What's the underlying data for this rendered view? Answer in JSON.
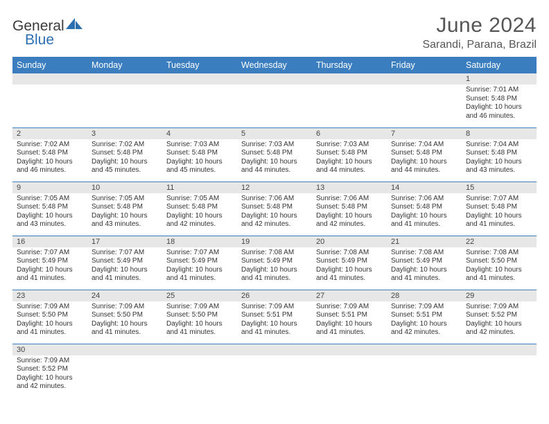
{
  "brand": {
    "name1": "General",
    "name2": "Blue",
    "color_general": "#3a3a3a",
    "color_blue": "#2b6fb0",
    "icon_fill": "#2b6fb0"
  },
  "title": "June 2024",
  "location": "Sarandi, Parana, Brazil",
  "colors": {
    "header_bg": "#3a7ebf",
    "header_text": "#ffffff",
    "daynum_bg": "#e7e7e7",
    "row_border": "#3a7ebf",
    "text": "#333333",
    "title_text": "#555555"
  },
  "weekdays": [
    "Sunday",
    "Monday",
    "Tuesday",
    "Wednesday",
    "Thursday",
    "Friday",
    "Saturday"
  ],
  "weeks": [
    [
      null,
      null,
      null,
      null,
      null,
      null,
      {
        "d": "1",
        "sr": "Sunrise: 7:01 AM",
        "ss": "Sunset: 5:48 PM",
        "dl1": "Daylight: 10 hours",
        "dl2": "and 46 minutes."
      }
    ],
    [
      {
        "d": "2",
        "sr": "Sunrise: 7:02 AM",
        "ss": "Sunset: 5:48 PM",
        "dl1": "Daylight: 10 hours",
        "dl2": "and 46 minutes."
      },
      {
        "d": "3",
        "sr": "Sunrise: 7:02 AM",
        "ss": "Sunset: 5:48 PM",
        "dl1": "Daylight: 10 hours",
        "dl2": "and 45 minutes."
      },
      {
        "d": "4",
        "sr": "Sunrise: 7:03 AM",
        "ss": "Sunset: 5:48 PM",
        "dl1": "Daylight: 10 hours",
        "dl2": "and 45 minutes."
      },
      {
        "d": "5",
        "sr": "Sunrise: 7:03 AM",
        "ss": "Sunset: 5:48 PM",
        "dl1": "Daylight: 10 hours",
        "dl2": "and 44 minutes."
      },
      {
        "d": "6",
        "sr": "Sunrise: 7:03 AM",
        "ss": "Sunset: 5:48 PM",
        "dl1": "Daylight: 10 hours",
        "dl2": "and 44 minutes."
      },
      {
        "d": "7",
        "sr": "Sunrise: 7:04 AM",
        "ss": "Sunset: 5:48 PM",
        "dl1": "Daylight: 10 hours",
        "dl2": "and 44 minutes."
      },
      {
        "d": "8",
        "sr": "Sunrise: 7:04 AM",
        "ss": "Sunset: 5:48 PM",
        "dl1": "Daylight: 10 hours",
        "dl2": "and 43 minutes."
      }
    ],
    [
      {
        "d": "9",
        "sr": "Sunrise: 7:05 AM",
        "ss": "Sunset: 5:48 PM",
        "dl1": "Daylight: 10 hours",
        "dl2": "and 43 minutes."
      },
      {
        "d": "10",
        "sr": "Sunrise: 7:05 AM",
        "ss": "Sunset: 5:48 PM",
        "dl1": "Daylight: 10 hours",
        "dl2": "and 43 minutes."
      },
      {
        "d": "11",
        "sr": "Sunrise: 7:05 AM",
        "ss": "Sunset: 5:48 PM",
        "dl1": "Daylight: 10 hours",
        "dl2": "and 42 minutes."
      },
      {
        "d": "12",
        "sr": "Sunrise: 7:06 AM",
        "ss": "Sunset: 5:48 PM",
        "dl1": "Daylight: 10 hours",
        "dl2": "and 42 minutes."
      },
      {
        "d": "13",
        "sr": "Sunrise: 7:06 AM",
        "ss": "Sunset: 5:48 PM",
        "dl1": "Daylight: 10 hours",
        "dl2": "and 42 minutes."
      },
      {
        "d": "14",
        "sr": "Sunrise: 7:06 AM",
        "ss": "Sunset: 5:48 PM",
        "dl1": "Daylight: 10 hours",
        "dl2": "and 41 minutes."
      },
      {
        "d": "15",
        "sr": "Sunrise: 7:07 AM",
        "ss": "Sunset: 5:48 PM",
        "dl1": "Daylight: 10 hours",
        "dl2": "and 41 minutes."
      }
    ],
    [
      {
        "d": "16",
        "sr": "Sunrise: 7:07 AM",
        "ss": "Sunset: 5:49 PM",
        "dl1": "Daylight: 10 hours",
        "dl2": "and 41 minutes."
      },
      {
        "d": "17",
        "sr": "Sunrise: 7:07 AM",
        "ss": "Sunset: 5:49 PM",
        "dl1": "Daylight: 10 hours",
        "dl2": "and 41 minutes."
      },
      {
        "d": "18",
        "sr": "Sunrise: 7:07 AM",
        "ss": "Sunset: 5:49 PM",
        "dl1": "Daylight: 10 hours",
        "dl2": "and 41 minutes."
      },
      {
        "d": "19",
        "sr": "Sunrise: 7:08 AM",
        "ss": "Sunset: 5:49 PM",
        "dl1": "Daylight: 10 hours",
        "dl2": "and 41 minutes."
      },
      {
        "d": "20",
        "sr": "Sunrise: 7:08 AM",
        "ss": "Sunset: 5:49 PM",
        "dl1": "Daylight: 10 hours",
        "dl2": "and 41 minutes."
      },
      {
        "d": "21",
        "sr": "Sunrise: 7:08 AM",
        "ss": "Sunset: 5:49 PM",
        "dl1": "Daylight: 10 hours",
        "dl2": "and 41 minutes."
      },
      {
        "d": "22",
        "sr": "Sunrise: 7:08 AM",
        "ss": "Sunset: 5:50 PM",
        "dl1": "Daylight: 10 hours",
        "dl2": "and 41 minutes."
      }
    ],
    [
      {
        "d": "23",
        "sr": "Sunrise: 7:09 AM",
        "ss": "Sunset: 5:50 PM",
        "dl1": "Daylight: 10 hours",
        "dl2": "and 41 minutes."
      },
      {
        "d": "24",
        "sr": "Sunrise: 7:09 AM",
        "ss": "Sunset: 5:50 PM",
        "dl1": "Daylight: 10 hours",
        "dl2": "and 41 minutes."
      },
      {
        "d": "25",
        "sr": "Sunrise: 7:09 AM",
        "ss": "Sunset: 5:50 PM",
        "dl1": "Daylight: 10 hours",
        "dl2": "and 41 minutes."
      },
      {
        "d": "26",
        "sr": "Sunrise: 7:09 AM",
        "ss": "Sunset: 5:51 PM",
        "dl1": "Daylight: 10 hours",
        "dl2": "and 41 minutes."
      },
      {
        "d": "27",
        "sr": "Sunrise: 7:09 AM",
        "ss": "Sunset: 5:51 PM",
        "dl1": "Daylight: 10 hours",
        "dl2": "and 41 minutes."
      },
      {
        "d": "28",
        "sr": "Sunrise: 7:09 AM",
        "ss": "Sunset: 5:51 PM",
        "dl1": "Daylight: 10 hours",
        "dl2": "and 42 minutes."
      },
      {
        "d": "29",
        "sr": "Sunrise: 7:09 AM",
        "ss": "Sunset: 5:52 PM",
        "dl1": "Daylight: 10 hours",
        "dl2": "and 42 minutes."
      }
    ],
    [
      {
        "d": "30",
        "sr": "Sunrise: 7:09 AM",
        "ss": "Sunset: 5:52 PM",
        "dl1": "Daylight: 10 hours",
        "dl2": "and 42 minutes."
      },
      null,
      null,
      null,
      null,
      null,
      null
    ]
  ]
}
